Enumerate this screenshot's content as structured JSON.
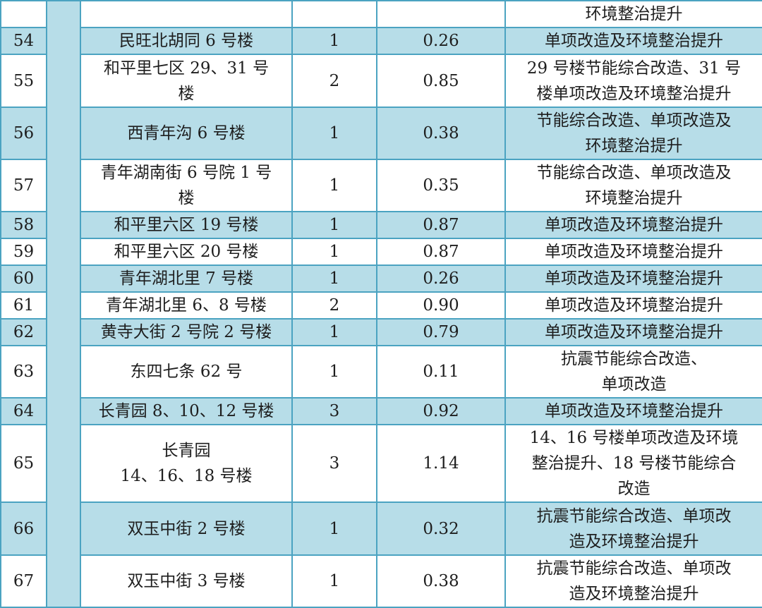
{
  "colors": {
    "fill": "#b7dde8",
    "border": "#4ba3c1",
    "text": "#1e1e1e"
  },
  "rows": [
    {
      "no": "",
      "name": "",
      "count": "",
      "area": "",
      "content": "环境整治提升",
      "shaded": false
    },
    {
      "no": "54",
      "name": "民旺北胡同 6 号楼",
      "count": "1",
      "area": "0.26",
      "content": "单项改造及环境整治提升",
      "shaded": true
    },
    {
      "no": "55",
      "name": "和平里七区 29、31 号\n楼",
      "count": "2",
      "area": "0.85",
      "content": "29 号楼节能综合改造、31 号\n楼单项改造及环境整治提升",
      "shaded": false
    },
    {
      "no": "56",
      "name": "西青年沟 6 号楼",
      "count": "1",
      "area": "0.38",
      "content": "节能综合改造、单项改造及\n环境整治提升",
      "shaded": true
    },
    {
      "no": "57",
      "name": "青年湖南街 6 号院 1 号\n楼",
      "count": "1",
      "area": "0.35",
      "content": "节能综合改造、单项改造及\n环境整治提升",
      "shaded": false
    },
    {
      "no": "58",
      "name": "和平里六区 19 号楼",
      "count": "1",
      "area": "0.87",
      "content": "单项改造及环境整治提升",
      "shaded": true
    },
    {
      "no": "59",
      "name": "和平里六区 20 号楼",
      "count": "1",
      "area": "0.87",
      "content": "单项改造及环境整治提升",
      "shaded": false
    },
    {
      "no": "60",
      "name": "青年湖北里 7 号楼",
      "count": "1",
      "area": "0.26",
      "content": "单项改造及环境整治提升",
      "shaded": true
    },
    {
      "no": "61",
      "name": "青年湖北里 6、8 号楼",
      "count": "2",
      "area": "0.90",
      "content": "单项改造及环境整治提升",
      "shaded": false
    },
    {
      "no": "62",
      "name": "黄寺大街 2 号院 2 号楼",
      "count": "1",
      "area": "0.79",
      "content": "单项改造及环境整治提升",
      "shaded": true
    },
    {
      "no": "63",
      "name": "东四七条 62 号",
      "count": "1",
      "area": "0.11",
      "content": "抗震节能综合改造、\n单项改造",
      "shaded": false
    },
    {
      "no": "64",
      "name": "长青园 8、10、12 号楼",
      "count": "3",
      "area": "0.92",
      "content": "单项改造及环境整治提升",
      "shaded": true
    },
    {
      "no": "65",
      "name": "长青园\n14、16、18 号楼",
      "count": "3",
      "area": "1.14",
      "content": "14、16 号楼单项改造及环境\n整治提升、18 号楼节能综合\n改造",
      "shaded": false
    },
    {
      "no": "66",
      "name": "双玉中街 2 号楼",
      "count": "1",
      "area": "0.32",
      "content": "抗震节能综合改造、单项改\n造及环境整治提升",
      "shaded": true
    },
    {
      "no": "67",
      "name": "双玉中街 3 号楼",
      "count": "1",
      "area": "0.38",
      "content": "抗震节能综合改造、单项改\n造及环境整治提升",
      "shaded": false
    }
  ]
}
